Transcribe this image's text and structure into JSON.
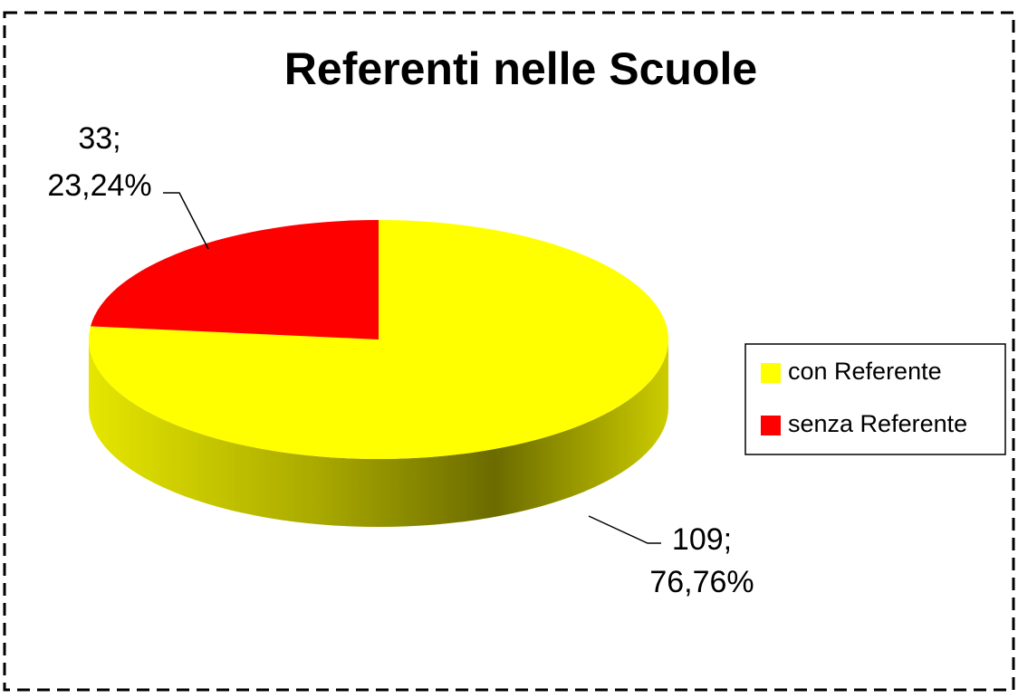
{
  "chart_data": {
    "type": "pie",
    "title": "Referenti nelle Scuole",
    "categories": [
      "con Referente",
      "senza Referente"
    ],
    "values": [
      109,
      33
    ],
    "value_labels": [
      [
        "109;",
        "76,76%"
      ],
      [
        "33;",
        "23,24%"
      ]
    ],
    "colors": [
      "#ffff00",
      "#ff0000"
    ],
    "legend": "right"
  }
}
